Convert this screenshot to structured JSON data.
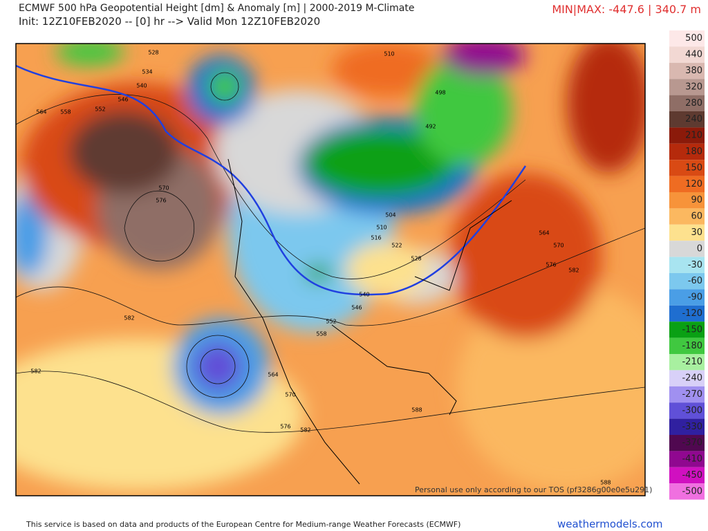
{
  "header": {
    "title": "ECMWF 500 hPa Geopotential Height [dm] & Anomaly [m] | 2000-2019 M-Climate",
    "init": "Init: 12Z10FEB2020 -- [0] hr --> Valid Mon 12Z10FEB2020",
    "minmax": "MIN|MAX: -447.6 | 340.7 m"
  },
  "map": {
    "contour_labels": [
      "528",
      "534",
      "540",
      "546",
      "552",
      "558",
      "564",
      "570",
      "576",
      "582",
      "582",
      "510",
      "498",
      "492",
      "504",
      "510",
      "516",
      "522",
      "528",
      "546",
      "552",
      "558",
      "564",
      "570",
      "576",
      "582",
      "588",
      "564",
      "570",
      "576",
      "582",
      "588",
      "540"
    ],
    "watermark": "Personal use only according to our TOS (pf3286g00e0e5u291)"
  },
  "colorbar": {
    "levels": [
      500,
      440,
      380,
      320,
      280,
      240,
      210,
      180,
      150,
      120,
      90,
      60,
      30,
      0,
      -30,
      -60,
      -90,
      -120,
      -150,
      -180,
      -210,
      -240,
      -270,
      -300,
      -330,
      -370,
      -410,
      -450,
      -500
    ],
    "colors": [
      "#fde8e8",
      "#f2d8d3",
      "#d9b8b0",
      "#b89890",
      "#8f6e66",
      "#5e3a30",
      "#8b1a0a",
      "#b52a0c",
      "#d94a14",
      "#ef6c22",
      "#f7933a",
      "#fbb860",
      "#fde18e",
      "#d8d8d8",
      "#a8e4f0",
      "#7cc8ee",
      "#4a9ee6",
      "#1f6ed0",
      "#0aa014",
      "#40c840",
      "#a8f0a0",
      "#d8d0f8",
      "#a090f0",
      "#6050d8",
      "#3020a0",
      "#500850",
      "#900890",
      "#d010c0",
      "#f070e0"
    ]
  },
  "footer": {
    "disclaimer": "This service is based on data and products of the European Centre for Medium-range Weather Forecasts (ECMWF)",
    "brand": "weathermodels.com"
  }
}
